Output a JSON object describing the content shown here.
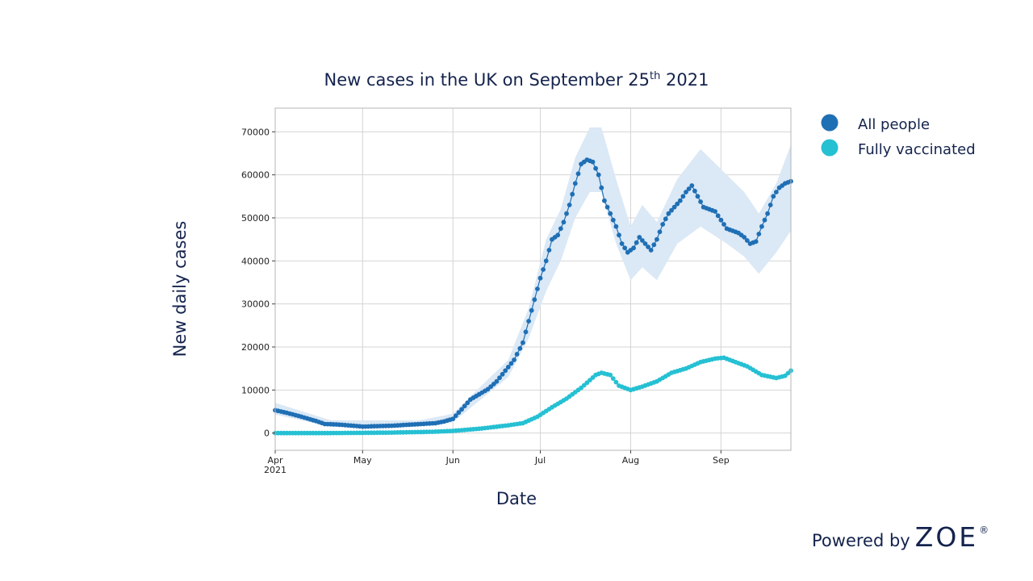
{
  "chart_data": {
    "type": "line",
    "title_main": "New cases in the UK on September 25",
    "title_sup": "th",
    "title_end": " 2021",
    "xlabel": "Date",
    "ylabel": "New daily cases",
    "x_range": [
      "2021-04-01",
      "2021-09-25"
    ],
    "ylim": [
      -4000,
      75500
    ],
    "yticks": [
      0,
      10000,
      20000,
      30000,
      40000,
      50000,
      60000,
      70000
    ],
    "xticks": [
      {
        "date": "2021-04-01",
        "label": "Apr",
        "sublabel": "2021"
      },
      {
        "date": "2021-05-01",
        "label": "May"
      },
      {
        "date": "2021-06-01",
        "label": "Jun"
      },
      {
        "date": "2021-07-01",
        "label": "Jul"
      },
      {
        "date": "2021-08-01",
        "label": "Aug"
      },
      {
        "date": "2021-09-01",
        "label": "Sep"
      }
    ],
    "grid": true,
    "legend_position": "right",
    "series": [
      {
        "name": "All people",
        "color": "#1f6fb5",
        "band_color": "#dbe8f5",
        "x": [
          "2021-04-01",
          "2021-04-05",
          "2021-04-10",
          "2021-04-15",
          "2021-04-18",
          "2021-04-22",
          "2021-04-26",
          "2021-05-01",
          "2021-05-06",
          "2021-05-11",
          "2021-05-16",
          "2021-05-21",
          "2021-05-26",
          "2021-05-29",
          "2021-06-01",
          "2021-06-04",
          "2021-06-07",
          "2021-06-10",
          "2021-06-13",
          "2021-06-16",
          "2021-06-19",
          "2021-06-22",
          "2021-06-25",
          "2021-06-27",
          "2021-06-29",
          "2021-07-01",
          "2021-07-03",
          "2021-07-05",
          "2021-07-07",
          "2021-07-09",
          "2021-07-11",
          "2021-07-13",
          "2021-07-15",
          "2021-07-17",
          "2021-07-19",
          "2021-07-21",
          "2021-07-23",
          "2021-07-25",
          "2021-07-27",
          "2021-07-29",
          "2021-07-31",
          "2021-08-02",
          "2021-08-04",
          "2021-08-06",
          "2021-08-08",
          "2021-08-10",
          "2021-08-12",
          "2021-08-14",
          "2021-08-16",
          "2021-08-18",
          "2021-08-20",
          "2021-08-22",
          "2021-08-24",
          "2021-08-26",
          "2021-08-28",
          "2021-08-30",
          "2021-09-01",
          "2021-09-03",
          "2021-09-05",
          "2021-09-07",
          "2021-09-09",
          "2021-09-11",
          "2021-09-13",
          "2021-09-15",
          "2021-09-17",
          "2021-09-19",
          "2021-09-21",
          "2021-09-23",
          "2021-09-25"
        ],
        "y": [
          5300,
          4700,
          3800,
          2800,
          2100,
          2000,
          1800,
          1500,
          1600,
          1700,
          1900,
          2100,
          2300,
          2700,
          3300,
          5500,
          7800,
          9000,
          10200,
          12000,
          14500,
          17000,
          21000,
          26000,
          31000,
          36000,
          40000,
          45000,
          46000,
          49000,
          53000,
          58000,
          62500,
          63500,
          63000,
          60000,
          54000,
          51000,
          48000,
          44000,
          42000,
          43000,
          45500,
          44000,
          42500,
          45000,
          48500,
          51000,
          52500,
          54000,
          56000,
          57500,
          55000,
          52500,
          52000,
          51500,
          49500,
          47500,
          47000,
          46500,
          45500,
          44000,
          44500,
          48000,
          51000,
          55000,
          57000,
          58000,
          58500
        ],
        "band": [
          {
            "d": "2021-04-01",
            "lo": 4300,
            "hi": 7000
          },
          {
            "d": "2021-04-20",
            "lo": 1500,
            "hi": 3000
          },
          {
            "d": "2021-05-20",
            "lo": 1600,
            "hi": 2900
          },
          {
            "d": "2021-06-01",
            "lo": 2500,
            "hi": 4500
          },
          {
            "d": "2021-06-10",
            "lo": 7500,
            "hi": 10500
          },
          {
            "d": "2021-06-20",
            "lo": 13000,
            "hi": 17000
          },
          {
            "d": "2021-06-27",
            "lo": 22000,
            "hi": 29000
          },
          {
            "d": "2021-07-03",
            "lo": 33000,
            "hi": 45000
          },
          {
            "d": "2021-07-08",
            "lo": 40000,
            "hi": 52000
          },
          {
            "d": "2021-07-13",
            "lo": 50000,
            "hi": 64000
          },
          {
            "d": "2021-07-18",
            "lo": 56000,
            "hi": 71000
          },
          {
            "d": "2021-07-22",
            "lo": 56000,
            "hi": 71000
          },
          {
            "d": "2021-07-27",
            "lo": 44000,
            "hi": 59000
          },
          {
            "d": "2021-08-01",
            "lo": 35500,
            "hi": 48000
          },
          {
            "d": "2021-08-05",
            "lo": 38500,
            "hi": 53000
          },
          {
            "d": "2021-08-10",
            "lo": 35500,
            "hi": 49000
          },
          {
            "d": "2021-08-17",
            "lo": 44000,
            "hi": 59000
          },
          {
            "d": "2021-08-25",
            "lo": 48000,
            "hi": 66000
          },
          {
            "d": "2021-09-03",
            "lo": 44000,
            "hi": 60000
          },
          {
            "d": "2021-09-09",
            "lo": 41000,
            "hi": 56000
          },
          {
            "d": "2021-09-14",
            "lo": 37000,
            "hi": 51000
          },
          {
            "d": "2021-09-20",
            "lo": 42000,
            "hi": 58000
          },
          {
            "d": "2021-09-25",
            "lo": 47000,
            "hi": 67000
          }
        ]
      },
      {
        "name": "Fully vaccinated",
        "color": "#26c0d3",
        "x": [
          "2021-04-01",
          "2021-04-20",
          "2021-05-10",
          "2021-05-25",
          "2021-06-01",
          "2021-06-10",
          "2021-06-20",
          "2021-06-25",
          "2021-06-30",
          "2021-07-05",
          "2021-07-10",
          "2021-07-15",
          "2021-07-20",
          "2021-07-22",
          "2021-07-25",
          "2021-07-28",
          "2021-08-01",
          "2021-08-05",
          "2021-08-10",
          "2021-08-15",
          "2021-08-20",
          "2021-08-25",
          "2021-08-30",
          "2021-09-02",
          "2021-09-06",
          "2021-09-10",
          "2021-09-15",
          "2021-09-20",
          "2021-09-23",
          "2021-09-25"
        ],
        "y": [
          0,
          0,
          100,
          300,
          500,
          1000,
          1800,
          2300,
          3800,
          6000,
          8000,
          10500,
          13500,
          14000,
          13500,
          11000,
          10000,
          10800,
          12000,
          14000,
          15000,
          16500,
          17300,
          17500,
          16500,
          15500,
          13500,
          12800,
          13300,
          14500
        ]
      }
    ]
  },
  "brand": {
    "powered_by": "Powered by",
    "logo": "ZOE",
    "registered": "®"
  }
}
